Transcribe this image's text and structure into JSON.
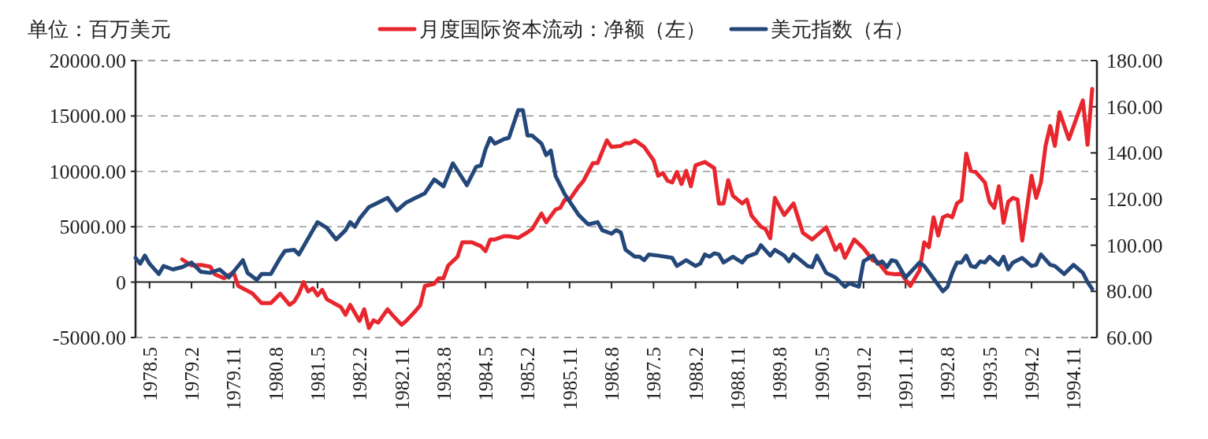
{
  "chart_data": {
    "type": "line",
    "ylabel": "单位：百万美元",
    "legend": "top",
    "grid": "y",
    "marker": "none",
    "line_style": "solid",
    "xlim": [
      "1978-02",
      "1995-04"
    ],
    "xticks": [
      {
        "value": "1978-05",
        "label": "1978.5"
      },
      {
        "value": "1979-02",
        "label": "1979.2"
      },
      {
        "value": "1979-11",
        "label": "1979.11"
      },
      {
        "value": "1980-08",
        "label": "1980.8"
      },
      {
        "value": "1981-05",
        "label": "1981.5"
      },
      {
        "value": "1982-02",
        "label": "1982.2"
      },
      {
        "value": "1982-11",
        "label": "1982.11"
      },
      {
        "value": "1983-08",
        "label": "1983.8"
      },
      {
        "value": "1984-05",
        "label": "1984.5"
      },
      {
        "value": "1985-02",
        "label": "1985.2"
      },
      {
        "value": "1985-11",
        "label": "1985.11"
      },
      {
        "value": "1986-08",
        "label": "1986.8"
      },
      {
        "value": "1987-05",
        "label": "1987.5"
      },
      {
        "value": "1988-02",
        "label": "1988.2"
      },
      {
        "value": "1988-11",
        "label": "1988.11"
      },
      {
        "value": "1989-08",
        "label": "1989.8"
      },
      {
        "value": "1990-05",
        "label": "1990.5"
      },
      {
        "value": "1991-02",
        "label": "1991.2"
      },
      {
        "value": "1991-11",
        "label": "1991.11"
      },
      {
        "value": "1992-08",
        "label": "1992.8"
      },
      {
        "value": "1993-05",
        "label": "1993.5"
      },
      {
        "value": "1994-02",
        "label": "1994.2"
      },
      {
        "value": "1994-11",
        "label": "1994.11"
      }
    ],
    "ylim": [
      -5000,
      20000
    ],
    "yticks": [
      {
        "value": -5000,
        "label": "-5000.00"
      },
      0,
      {
        "value": 5000,
        "label": "5000.00"
      },
      {
        "value": 10000,
        "label": "10000.00"
      },
      {
        "value": 15000,
        "label": "15000.00"
      },
      {
        "value": 20000,
        "label": "20000.00"
      }
    ],
    "y2lim": [
      60,
      180
    ],
    "y2ticks": [
      {
        "value": 60,
        "label": "60.00"
      },
      {
        "value": 80,
        "label": "80.00"
      },
      {
        "value": 100,
        "label": "100.00"
      },
      {
        "value": 120,
        "label": "120.00"
      },
      {
        "value": 140,
        "label": "140.00"
      },
      {
        "value": 160,
        "label": "160.00"
      },
      {
        "value": 180,
        "label": "180.00"
      }
    ],
    "series": [
      {
        "name": "月度国际资本流动：净额（左）",
        "color": "#e8262d",
        "x": [
          "1978-12",
          "1979-02",
          "1979-04",
          "1979-06",
          "1979-07",
          "1979-09",
          "1979-11",
          "1979-12",
          "1980-03",
          "1980-05",
          "1980-07",
          "1980-09",
          "1980-11",
          "1980-12",
          "1981-01",
          "1981-02",
          "1981-03",
          "1981-04",
          "1981-05",
          "1981-06",
          "1981-07",
          "1981-10",
          "1981-11",
          "1981-12",
          "1982-02",
          "1982-03",
          "1982-04",
          "1982-05",
          "1982-06",
          "1982-08",
          "1982-09",
          "1982-11",
          "1982-12",
          "1983-02",
          "1983-03",
          "1983-04",
          "1983-06",
          "1983-07",
          "1983-08",
          "1983-09",
          "1983-11",
          "1983-12",
          "1984-02",
          "1984-04",
          "1984-05",
          "1984-06",
          "1984-07",
          "1984-09",
          "1984-10",
          "1984-12",
          "1985-02",
          "1985-03",
          "1985-05",
          "1985-06",
          "1985-08",
          "1985-09",
          "1985-10",
          "1985-11",
          "1986-01",
          "1986-02",
          "1986-04",
          "1986-05",
          "1986-07",
          "1986-08",
          "1986-10",
          "1986-11",
          "1986-12",
          "1987-01",
          "1987-03",
          "1987-05",
          "1987-06",
          "1987-07",
          "1987-08",
          "1987-09",
          "1987-10",
          "1987-11",
          "1987-12",
          "1988-01",
          "1988-02",
          "1988-04",
          "1988-06",
          "1988-07",
          "1988-08",
          "1988-09",
          "1988-10",
          "1988-12",
          "1989-01",
          "1989-02",
          "1989-04",
          "1989-05",
          "1989-06",
          "1989-07",
          "1989-09",
          "1989-11",
          "1990-01",
          "1990-03",
          "1990-06",
          "1990-08",
          "1990-09",
          "1990-10",
          "1990-12",
          "1991-02",
          "1991-04",
          "1991-05",
          "1991-07",
          "1991-09",
          "1991-10",
          "1991-12",
          "1992-02",
          "1992-03",
          "1992-04",
          "1992-05",
          "1992-06",
          "1992-07",
          "1992-08",
          "1992-09",
          "1992-10",
          "1992-11",
          "1992-12",
          "1993-01",
          "1993-02",
          "1993-04",
          "1993-05",
          "1993-06",
          "1993-07",
          "1993-08",
          "1993-09",
          "1993-10",
          "1993-11",
          "1993-12",
          "1994-02",
          "1994-03",
          "1994-04",
          "1994-05",
          "1994-06",
          "1994-07",
          "1994-08",
          "1994-10",
          "1995-01",
          "1995-02",
          "1995-03"
        ],
        "values": [
          2050,
          1500,
          1550,
          1400,
          700,
          350,
          900,
          -350,
          -1000,
          -1900,
          -1900,
          -1050,
          -2050,
          -1750,
          -1050,
          0,
          -850,
          -550,
          -1200,
          -700,
          -1550,
          -2250,
          -2950,
          -2050,
          -3500,
          -2450,
          -4150,
          -3450,
          -3650,
          -2450,
          -2950,
          -3850,
          -3500,
          -2600,
          -2100,
          -350,
          -150,
          350,
          350,
          1500,
          2300,
          3600,
          3600,
          3250,
          2800,
          3850,
          3850,
          4150,
          4150,
          4000,
          4500,
          4800,
          6200,
          5400,
          6550,
          6700,
          7450,
          7450,
          8650,
          9150,
          10750,
          10750,
          12800,
          12200,
          12300,
          12550,
          12550,
          12800,
          12200,
          11000,
          9600,
          9850,
          9150,
          9000,
          9950,
          8850,
          10050,
          8650,
          10550,
          10850,
          10300,
          7100,
          7100,
          9200,
          7800,
          7100,
          7450,
          6000,
          5000,
          4800,
          3950,
          7600,
          6050,
          7100,
          4450,
          3850,
          4950,
          2900,
          3400,
          2200,
          3850,
          3050,
          1950,
          1850,
          800,
          700,
          800,
          -350,
          1050,
          3600,
          3150,
          5850,
          4200,
          5850,
          6050,
          5850,
          7100,
          7400,
          11600,
          10050,
          9950,
          9000,
          7250,
          6700,
          8650,
          5350,
          7250,
          7600,
          7450,
          3750,
          9600,
          7600,
          9000,
          12300,
          14100,
          12300,
          15350,
          12900,
          16400,
          12400,
          17450
        ]
      },
      {
        "name": "美元指数（右）",
        "color": "#24477a",
        "axis": "y2",
        "x": [
          "1978-02",
          "1978-03",
          "1978-04",
          "1978-05",
          "1978-07",
          "1978-08",
          "1978-10",
          "1978-12",
          "1979-02",
          "1979-04",
          "1979-06",
          "1979-08",
          "1979-10",
          "1980-01",
          "1980-02",
          "1980-04",
          "1980-05",
          "1980-07",
          "1980-09",
          "1980-10",
          "1980-12",
          "1981-01",
          "1981-05",
          "1981-07",
          "1981-09",
          "1981-11",
          "1981-12",
          "1982-01",
          "1982-02",
          "1982-04",
          "1982-06",
          "1982-08",
          "1982-10",
          "1982-12",
          "1983-02",
          "1983-04",
          "1983-06",
          "1983-08",
          "1983-10",
          "1984-01",
          "1984-03",
          "1984-04",
          "1984-05",
          "1984-06",
          "1984-07",
          "1984-09",
          "1984-10",
          "1984-12",
          "1985-01",
          "1985-02",
          "1985-03",
          "1985-05",
          "1985-06",
          "1985-07",
          "1985-08",
          "1985-10",
          "1986-01",
          "1986-03",
          "1986-05",
          "1986-06",
          "1986-08",
          "1986-09",
          "1986-10",
          "1986-11",
          "1987-01",
          "1987-02",
          "1987-03",
          "1987-04",
          "1987-06",
          "1987-09",
          "1987-10",
          "1987-12",
          "1988-02",
          "1988-03",
          "1988-04",
          "1988-05",
          "1988-06",
          "1988-07",
          "1988-08",
          "1988-10",
          "1988-12",
          "1989-01",
          "1989-03",
          "1989-04",
          "1989-06",
          "1989-07",
          "1989-09",
          "1989-10",
          "1989-11",
          "1990-02",
          "1990-03",
          "1990-04",
          "1990-06",
          "1990-08",
          "1990-10",
          "1990-11",
          "1991-01",
          "1991-02",
          "1991-04",
          "1991-05",
          "1991-06",
          "1991-07",
          "1991-08",
          "1991-09",
          "1991-11",
          "1992-02",
          "1992-03",
          "1992-07",
          "1992-08",
          "1992-09",
          "1992-10",
          "1992-11",
          "1992-12",
          "1993-01",
          "1993-02",
          "1993-03",
          "1993-04",
          "1993-05",
          "1993-07",
          "1993-08",
          "1993-09",
          "1993-10",
          "1993-12",
          "1994-02",
          "1994-03",
          "1994-04",
          "1994-06",
          "1994-07",
          "1994-09",
          "1994-11",
          "1995-01",
          "1995-02",
          "1995-03"
        ],
        "values": [
          94.5,
          92,
          95.5,
          92,
          87.5,
          91,
          89.5,
          90.5,
          92.5,
          88.5,
          88,
          89.5,
          86,
          93.5,
          88,
          85,
          87.5,
          87.5,
          94.5,
          97.5,
          98,
          96,
          110,
          107.5,
          102.5,
          106.5,
          110,
          108,
          111.5,
          116.5,
          118.5,
          120.5,
          115,
          118.5,
          120.5,
          122.5,
          128.5,
          125.5,
          135.5,
          126,
          134,
          134.5,
          141.5,
          146.5,
          144,
          146,
          146.5,
          158.5,
          158.5,
          147.5,
          147.5,
          144,
          139,
          141,
          130,
          122,
          113,
          109,
          110,
          106.5,
          105,
          106.5,
          105.5,
          98,
          95,
          95,
          93.5,
          96,
          95.5,
          94.5,
          91,
          93.5,
          91,
          92,
          96,
          95,
          96.5,
          96,
          92.5,
          95,
          92.5,
          95,
          96.5,
          100,
          95.5,
          98,
          95.5,
          93,
          96,
          91,
          90.5,
          95.5,
          88,
          86,
          82,
          83.5,
          82,
          93,
          95.5,
          92,
          93,
          90.5,
          93.5,
          93,
          86,
          92.5,
          91,
          80,
          82,
          88,
          92.5,
          92.5,
          95.5,
          91,
          90.5,
          93,
          92.5,
          95,
          91.5,
          95,
          89.5,
          92.5,
          94.5,
          91,
          91.5,
          96,
          91.5,
          91,
          87.5,
          91.5,
          88,
          84,
          81
        ]
      }
    ]
  }
}
